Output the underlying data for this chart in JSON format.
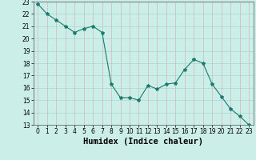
{
  "x": [
    0,
    1,
    2,
    3,
    4,
    5,
    6,
    7,
    8,
    9,
    10,
    11,
    12,
    13,
    14,
    15,
    16,
    17,
    18,
    19,
    20,
    21,
    22,
    23
  ],
  "y": [
    22.8,
    22.0,
    21.5,
    21.0,
    20.5,
    20.8,
    21.0,
    20.5,
    16.3,
    15.2,
    15.2,
    15.0,
    16.2,
    15.9,
    16.3,
    16.4,
    17.5,
    18.3,
    18.0,
    16.3,
    15.3,
    14.3,
    13.7,
    13.0
  ],
  "line_color": "#1a7a6e",
  "marker": "*",
  "bg_color": "#cceee8",
  "grid_color_h": "#a8d8d0",
  "grid_color_v": "#d4b8b8",
  "ylim": [
    13,
    23
  ],
  "xlim": [
    -0.5,
    23.5
  ],
  "yticks": [
    13,
    14,
    15,
    16,
    17,
    18,
    19,
    20,
    21,
    22,
    23
  ],
  "xticks": [
    0,
    1,
    2,
    3,
    4,
    5,
    6,
    7,
    8,
    9,
    10,
    11,
    12,
    13,
    14,
    15,
    16,
    17,
    18,
    19,
    20,
    21,
    22,
    23
  ],
  "xlabel": "Humidex (Indice chaleur)",
  "tick_labelsize": 5.5,
  "xlabel_fontsize": 7.5,
  "xlabel_fontweight": "bold"
}
